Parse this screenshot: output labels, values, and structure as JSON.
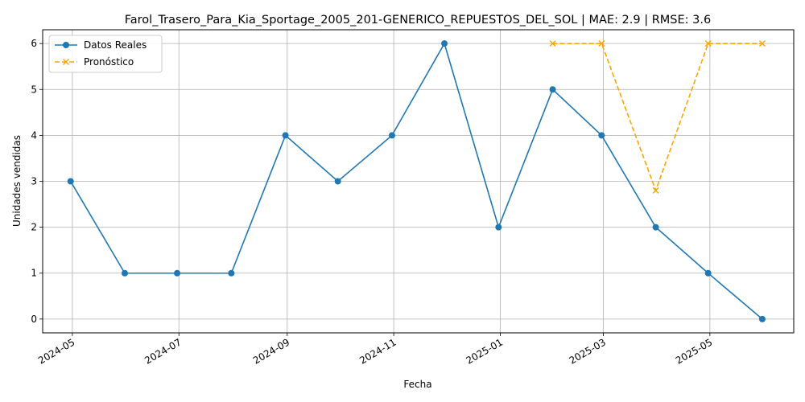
{
  "chart_data": {
    "type": "line",
    "title": "Farol_Trasero_Para_Kia_Sportage_2005_201-GENERICO_REPUESTOS_DEL_SOL | MAE: 2.9 | RMSE: 3.6",
    "xlabel": "Fecha",
    "ylabel": "Unidades vendidas",
    "ylim": [
      -0.3,
      6.3
    ],
    "xlim": [
      "2024-04-14",
      "2025-06-18"
    ],
    "grid": true,
    "legend_position": "top-left",
    "x_ticks": [
      "2024-05",
      "2024-07",
      "2024-09",
      "2024-11",
      "2025-01",
      "2025-03",
      "2025-05"
    ],
    "y_ticks": [
      0,
      1,
      2,
      3,
      4,
      5,
      6
    ],
    "series": [
      {
        "name": "Datos Reales",
        "color": "#1f77b4",
        "style": "solid",
        "marker": "circle",
        "points": [
          {
            "x": "2024-04-30",
            "y": 3
          },
          {
            "x": "2024-05-31",
            "y": 1
          },
          {
            "x": "2024-06-30",
            "y": 1
          },
          {
            "x": "2024-07-31",
            "y": 1
          },
          {
            "x": "2024-08-31",
            "y": 4
          },
          {
            "x": "2024-09-30",
            "y": 3
          },
          {
            "x": "2024-10-31",
            "y": 4
          },
          {
            "x": "2024-11-30",
            "y": 6
          },
          {
            "x": "2024-12-31",
            "y": 2
          },
          {
            "x": "2025-01-31",
            "y": 5
          },
          {
            "x": "2025-02-28",
            "y": 4
          },
          {
            "x": "2025-03-31",
            "y": 2
          },
          {
            "x": "2025-04-30",
            "y": 1
          },
          {
            "x": "2025-05-31",
            "y": 0
          }
        ]
      },
      {
        "name": "Pronóstico",
        "color": "#ffa500",
        "style": "dashed",
        "marker": "x",
        "points": [
          {
            "x": "2025-01-31",
            "y": 6
          },
          {
            "x": "2025-02-28",
            "y": 6
          },
          {
            "x": "2025-03-31",
            "y": 2.8
          },
          {
            "x": "2025-04-30",
            "y": 6
          },
          {
            "x": "2025-05-31",
            "y": 6
          }
        ]
      }
    ]
  }
}
